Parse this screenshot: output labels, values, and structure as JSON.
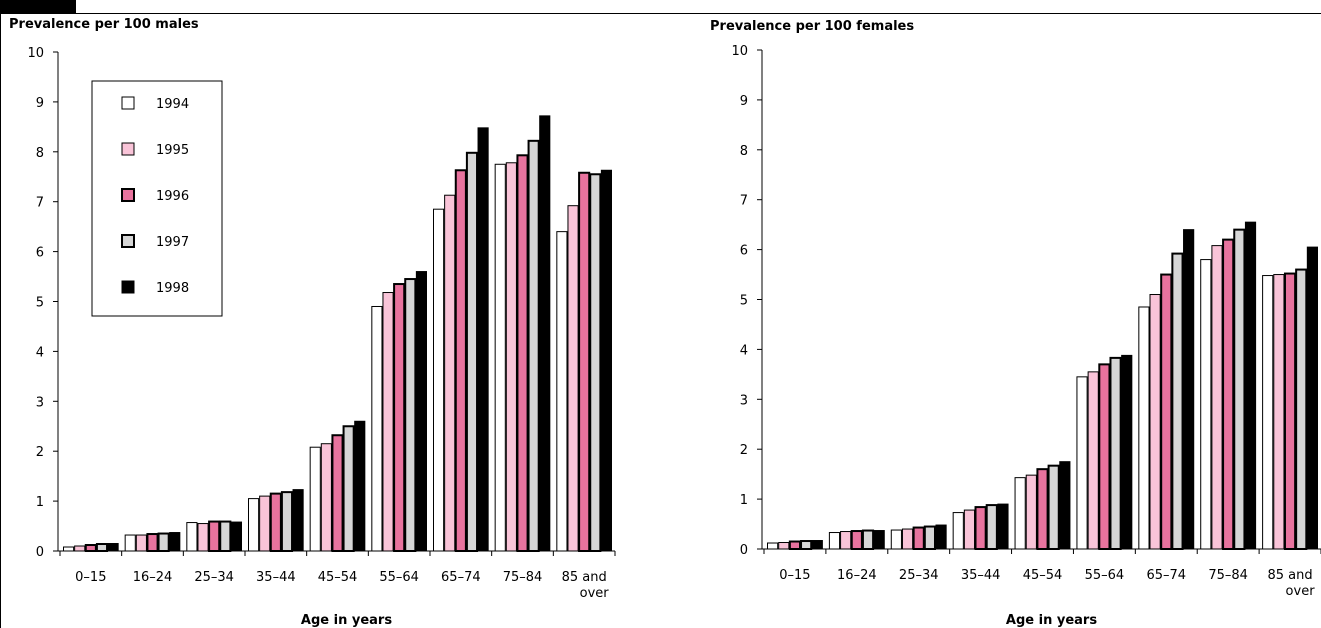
{
  "chart_data": [
    {
      "type": "bar",
      "title": "Prevalence per 100 males",
      "xlabel": "Age in years",
      "ylabel": "",
      "ylim": [
        0,
        10
      ],
      "yticks": [
        "0",
        "1",
        "2",
        "3",
        "4",
        "5",
        "6",
        "7",
        "8",
        "9",
        "10"
      ],
      "categories": [
        "0–15",
        "16–24",
        "25–34",
        "35–44",
        "45–54",
        "55–64",
        "65–74",
        "75–84",
        "85 and over"
      ],
      "category_lines": [
        [
          "0–15"
        ],
        [
          "16–24"
        ],
        [
          "25–34"
        ],
        [
          "35–44"
        ],
        [
          "45–54"
        ],
        [
          "55–64"
        ],
        [
          "65–74"
        ],
        [
          "75–84"
        ],
        [
          "85 and",
          "over"
        ]
      ],
      "legend_position": "top-left",
      "series": [
        {
          "name": "1994",
          "color": "#ffffff",
          "values": [
            0.08,
            0.32,
            0.57,
            1.05,
            2.08,
            4.9,
            6.85,
            7.75,
            6.4
          ]
        },
        {
          "name": "1995",
          "color": "#f9c4d8",
          "values": [
            0.1,
            0.32,
            0.55,
            1.1,
            2.15,
            5.18,
            7.13,
            7.78,
            6.92
          ]
        },
        {
          "name": "1996",
          "color": "#e8739e",
          "values": [
            0.12,
            0.34,
            0.59,
            1.15,
            2.32,
            5.35,
            7.63,
            7.93,
            7.58
          ]
        },
        {
          "name": "1997",
          "color": "#d6d6d6",
          "values": [
            0.14,
            0.35,
            0.59,
            1.18,
            2.5,
            5.45,
            7.98,
            8.22,
            7.55
          ]
        },
        {
          "name": "1998",
          "color": "#000000",
          "values": [
            0.15,
            0.37,
            0.58,
            1.23,
            2.6,
            5.6,
            8.48,
            8.72,
            7.63
          ]
        }
      ]
    },
    {
      "type": "bar",
      "title": "Prevalence per 100 females",
      "xlabel": "Age in years",
      "ylabel": "",
      "ylim": [
        0,
        10
      ],
      "yticks": [
        "0",
        "1",
        "2",
        "3",
        "4",
        "5",
        "6",
        "7",
        "8",
        "9",
        "10"
      ],
      "categories": [
        "0–15",
        "16–24",
        "25–34",
        "35–44",
        "45–54",
        "55–64",
        "65–74",
        "75–84",
        "85 and over"
      ],
      "category_lines": [
        [
          "0–15"
        ],
        [
          "16–24"
        ],
        [
          "25–34"
        ],
        [
          "35–44"
        ],
        [
          "45–54"
        ],
        [
          "55–64"
        ],
        [
          "65–74"
        ],
        [
          "75–84"
        ],
        [
          "85 and",
          "over"
        ]
      ],
      "series": [
        {
          "name": "1994",
          "color": "#ffffff",
          "values": [
            0.12,
            0.33,
            0.38,
            0.73,
            1.43,
            3.45,
            4.85,
            5.8,
            5.48
          ]
        },
        {
          "name": "1995",
          "color": "#f9c4d8",
          "values": [
            0.13,
            0.35,
            0.4,
            0.78,
            1.48,
            3.55,
            5.1,
            6.08,
            5.5
          ]
        },
        {
          "name": "1996",
          "color": "#e8739e",
          "values": [
            0.15,
            0.36,
            0.43,
            0.84,
            1.6,
            3.7,
            5.5,
            6.2,
            5.52
          ]
        },
        {
          "name": "1997",
          "color": "#d6d6d6",
          "values": [
            0.16,
            0.37,
            0.45,
            0.88,
            1.67,
            3.83,
            5.92,
            6.4,
            5.6
          ]
        },
        {
          "name": "1998",
          "color": "#000000",
          "values": [
            0.17,
            0.37,
            0.48,
            0.9,
            1.75,
            3.88,
            6.4,
            6.55,
            6.05
          ]
        }
      ]
    }
  ]
}
